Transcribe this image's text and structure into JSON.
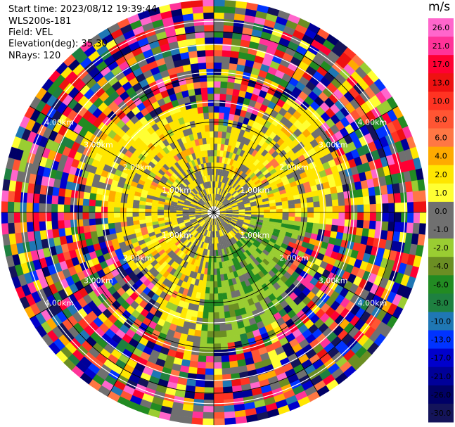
{
  "header": {
    "start_time": "Start time: 2023/08/12 19:39:44",
    "instrument": "WLS200s-181",
    "field": "Field: VEL",
    "elevation": "Elevation(deg): 35.30",
    "nrays": "NRays: 120"
  },
  "chart_data": {
    "type": "heatmap",
    "projection": "polar-ppi",
    "field": "VEL",
    "units": "m/s",
    "n_rays": 120,
    "elevation_deg": 35.3,
    "range_rings_km": [
      1.0,
      2.0,
      3.0,
      4.0
    ],
    "range_ring_labels": [
      "1.00km",
      "2.00km",
      "3.00km",
      "4.00km"
    ],
    "max_range_km": 4.7,
    "colorbar": {
      "title": "m/s",
      "ticks": [
        "26.0",
        "21.0",
        "17.0",
        "13.0",
        "10.0",
        "8.0",
        "6.0",
        "4.0",
        "2.0",
        "1.0",
        "0.0",
        "-1.0",
        "-2.0",
        "-4.0",
        "-6.0",
        "-8.0",
        "-10.0",
        "-13.0",
        "-17.0",
        "-21.0",
        "-26.0",
        "-30.0"
      ],
      "colors": [
        "#ff66cc",
        "#ff3399",
        "#ff0033",
        "#ee1111",
        "#ff3322",
        "#ff5533",
        "#ff7744",
        "#ffaa00",
        "#ffe600",
        "#ffff33",
        "#707070",
        "#707070",
        "#9acd32",
        "#6b8e23",
        "#228b22",
        "#1e8040",
        "#1f77b4",
        "#0033ff",
        "#0000cc",
        "#000099",
        "#000066",
        "#14145a"
      ]
    },
    "field_pattern": {
      "inner_signal": "yellow/gray near zero",
      "southeast_sector": "green negative",
      "outer_noise": "random full palette"
    }
  }
}
